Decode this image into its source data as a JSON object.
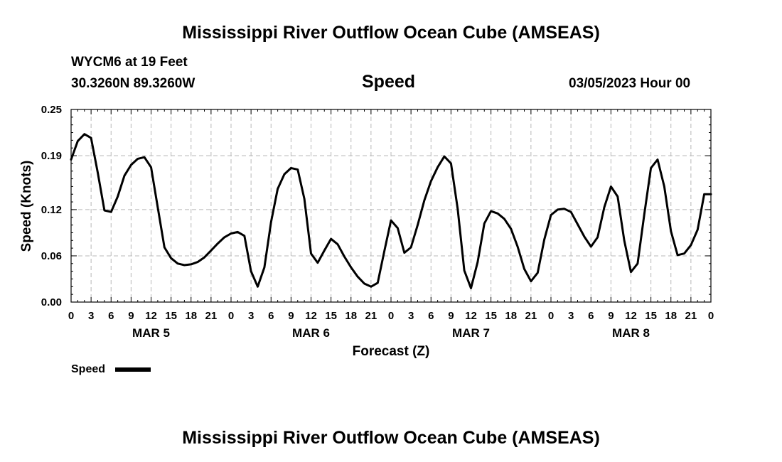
{
  "header": {
    "title": "Mississippi River Outflow Ocean Cube (AMSEAS)",
    "station": "WYCM6 at 19 Feet",
    "location": "30.3260N  89.3260W",
    "panel_title": "Speed",
    "run_time": "03/05/2023 Hour 00"
  },
  "footer": {
    "title": "Mississippi River Outflow Ocean Cube (AMSEAS)"
  },
  "chart_data": {
    "type": "line",
    "title": "Speed",
    "xlabel": "Forecast (Z)",
    "ylabel": "Speed (Knots)",
    "ylim": [
      0,
      0.25
    ],
    "xlim": [
      0,
      96
    ],
    "y_ticks": [
      0.0,
      0.06,
      0.12,
      0.19,
      0.25
    ],
    "y_tick_labels": [
      "0.00",
      "0.06",
      "0.12",
      "0.19",
      "0.25"
    ],
    "x_tick_labels": [
      "0",
      "3",
      "6",
      "9",
      "12",
      "15",
      "18",
      "21",
      "0",
      "3",
      "6",
      "9",
      "12",
      "15",
      "18",
      "21",
      "0",
      "3",
      "6",
      "9",
      "12",
      "15",
      "18",
      "21",
      "0",
      "3",
      "6",
      "9",
      "12",
      "15",
      "18",
      "21",
      "0"
    ],
    "day_labels": [
      {
        "label": "MAR 5",
        "hour": 12
      },
      {
        "label": "MAR 6",
        "hour": 36
      },
      {
        "label": "MAR 7",
        "hour": 60
      },
      {
        "label": "MAR 8",
        "hour": 84
      }
    ],
    "grid": true,
    "legend": {
      "position": "bottom-left",
      "entries": [
        "Speed"
      ]
    },
    "series": [
      {
        "name": "Speed",
        "color": "#000000",
        "x": [
          0,
          1,
          2,
          3,
          4,
          5,
          6,
          7,
          8,
          9,
          10,
          11,
          12,
          13,
          14,
          15,
          16,
          17,
          18,
          19,
          20,
          21,
          22,
          23,
          24,
          25,
          26,
          27,
          28,
          29,
          30,
          31,
          32,
          33,
          34,
          35,
          36,
          37,
          38,
          39,
          40,
          41,
          42,
          43,
          44,
          45,
          46,
          47,
          48,
          49,
          50,
          51,
          52,
          53,
          54,
          55,
          56,
          57,
          58,
          59,
          60,
          61,
          62,
          63,
          64,
          65,
          66,
          67,
          68,
          69,
          70,
          71,
          72,
          73,
          74,
          75,
          76,
          77,
          78,
          79,
          80,
          81,
          82,
          83,
          84,
          85,
          86,
          87,
          88,
          89,
          90,
          91,
          92,
          93,
          94,
          95,
          96
        ],
        "values": [
          0.185,
          0.209,
          0.218,
          0.213,
          0.168,
          0.119,
          0.117,
          0.137,
          0.164,
          0.178,
          0.186,
          0.188,
          0.175,
          0.123,
          0.071,
          0.057,
          0.05,
          0.048,
          0.049,
          0.052,
          0.058,
          0.067,
          0.076,
          0.084,
          0.089,
          0.091,
          0.086,
          0.04,
          0.02,
          0.045,
          0.104,
          0.147,
          0.166,
          0.174,
          0.172,
          0.134,
          0.063,
          0.051,
          0.067,
          0.082,
          0.075,
          0.059,
          0.045,
          0.033,
          0.024,
          0.02,
          0.025,
          0.066,
          0.106,
          0.096,
          0.064,
          0.071,
          0.1,
          0.132,
          0.157,
          0.175,
          0.189,
          0.18,
          0.121,
          0.041,
          0.018,
          0.052,
          0.102,
          0.118,
          0.115,
          0.108,
          0.095,
          0.072,
          0.043,
          0.027,
          0.038,
          0.081,
          0.113,
          0.12,
          0.121,
          0.117,
          0.101,
          0.085,
          0.072,
          0.084,
          0.123,
          0.15,
          0.137,
          0.08,
          0.039,
          0.05,
          0.114,
          0.174,
          0.185,
          0.15,
          0.092,
          0.061,
          0.063,
          0.074,
          0.094,
          0.14,
          0.14
        ]
      }
    ]
  }
}
